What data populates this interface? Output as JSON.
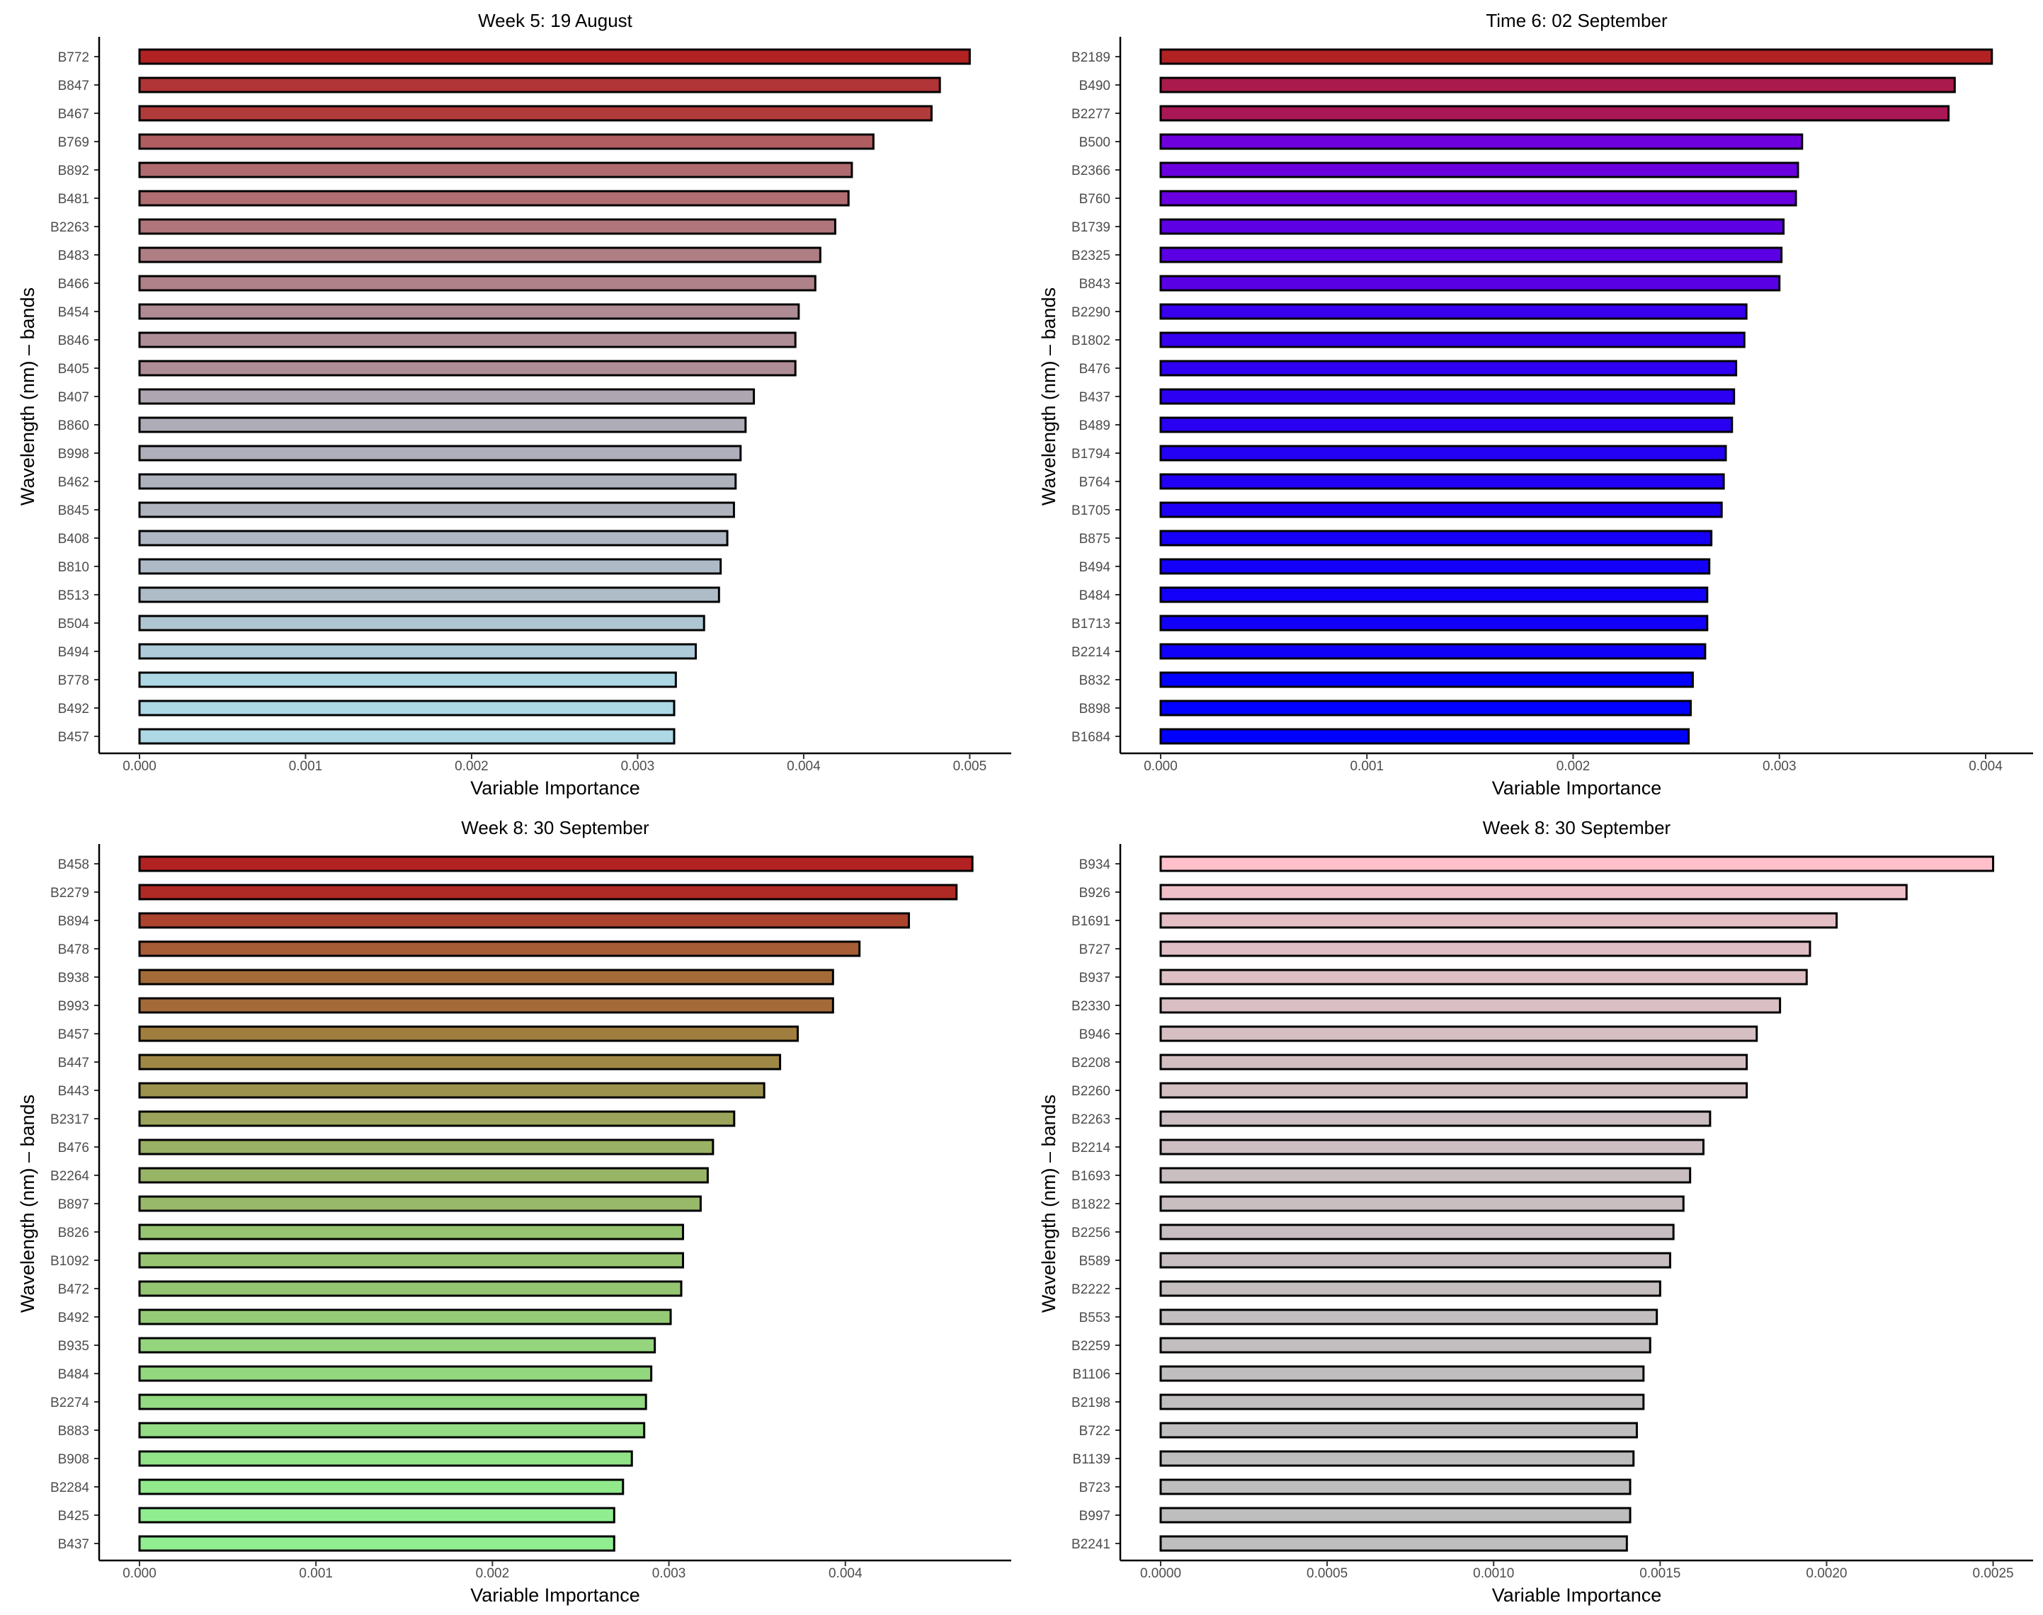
{
  "chart_data": [
    {
      "type": "bar",
      "orientation": "horizontal",
      "title": "Week 5: 19 August",
      "xlabel": "Variable Importance",
      "ylabel": "Wavelength (nm) – bands",
      "xlim": [
        0,
        0.00525
      ],
      "xticks": [
        0,
        0.001,
        0.002,
        0.003,
        0.004,
        0.005
      ],
      "xtick_labels": [
        "0.000",
        "0.001",
        "0.002",
        "0.003",
        "0.004",
        "0.005"
      ],
      "grid": false,
      "bar_outline": "#000000",
      "color_low": "#ADD8E6",
      "color_high": "#B22222",
      "categories": [
        "B772",
        "B847",
        "B467",
        "B769",
        "B892",
        "B481",
        "B2263",
        "B483",
        "B466",
        "B454",
        "B846",
        "B405",
        "B407",
        "B860",
        "B998",
        "B462",
        "B845",
        "B408",
        "B810",
        "B513",
        "B504",
        "B494",
        "B778",
        "B492",
        "B457"
      ],
      "values": [
        0.005,
        0.00482,
        0.00477,
        0.00442,
        0.00429,
        0.00427,
        0.00419,
        0.0041,
        0.00407,
        0.00397,
        0.00395,
        0.00395,
        0.0037,
        0.00365,
        0.00362,
        0.00359,
        0.00358,
        0.00354,
        0.0035,
        0.00349,
        0.0034,
        0.00335,
        0.00323,
        0.00322,
        0.00322
      ]
    },
    {
      "type": "bar",
      "orientation": "horizontal",
      "title": "Time 6: 02 September",
      "xlabel": "Variable Importance",
      "ylabel": "Wavelength (nm) – bands",
      "xlim": [
        0,
        0.00423
      ],
      "xticks": [
        0,
        0.001,
        0.002,
        0.003,
        0.004
      ],
      "xtick_labels": [
        "0.000",
        "0.001",
        "0.002",
        "0.003",
        "0.004"
      ],
      "grid": false,
      "bar_outline": "#000000",
      "color_low": "#0000FF",
      "color_mid": "#9400D3",
      "color_high": "#B22222",
      "categories": [
        "B2189",
        "B490",
        "B2277",
        "B500",
        "B2366",
        "B760",
        "B1739",
        "B2325",
        "B843",
        "B2290",
        "B1802",
        "B476",
        "B437",
        "B489",
        "B1794",
        "B764",
        "B1705",
        "B875",
        "B494",
        "B484",
        "B1713",
        "B2214",
        "B832",
        "B898",
        "B1684"
      ],
      "values": [
        0.00403,
        0.00385,
        0.00382,
        0.00311,
        0.00309,
        0.00308,
        0.00302,
        0.00301,
        0.003,
        0.00284,
        0.00283,
        0.00279,
        0.00278,
        0.00277,
        0.00274,
        0.00273,
        0.00272,
        0.00267,
        0.00266,
        0.00265,
        0.00265,
        0.00264,
        0.00258,
        0.00257,
        0.00256
      ]
    },
    {
      "type": "bar",
      "orientation": "horizontal",
      "title": "Week 8: 30 September",
      "xlabel": "Variable Importance",
      "ylabel": "Wavelength (nm) – bands",
      "xlim": [
        0,
        0.00494
      ],
      "xticks": [
        0,
        0.001,
        0.002,
        0.003,
        0.004
      ],
      "xtick_labels": [
        "0.000",
        "0.001",
        "0.002",
        "0.003",
        "0.004"
      ],
      "grid": false,
      "bar_outline": "#000000",
      "color_low": "#90EE90",
      "color_mid": "#A08040",
      "color_high": "#B22222",
      "categories": [
        "B458",
        "B2279",
        "B894",
        "B478",
        "B938",
        "B993",
        "B457",
        "B447",
        "B443",
        "B2317",
        "B476",
        "B2264",
        "B897",
        "B826",
        "B1092",
        "B472",
        "B492",
        "B935",
        "B484",
        "B2274",
        "B883",
        "B908",
        "B2284",
        "B425",
        "B437"
      ],
      "values": [
        0.00472,
        0.00463,
        0.00436,
        0.00408,
        0.00393,
        0.00393,
        0.00373,
        0.00363,
        0.00354,
        0.00337,
        0.00325,
        0.00322,
        0.00318,
        0.00308,
        0.00308,
        0.00307,
        0.00301,
        0.00292,
        0.0029,
        0.00287,
        0.00286,
        0.00279,
        0.00274,
        0.00269,
        0.00269
      ]
    },
    {
      "type": "bar",
      "orientation": "horizontal",
      "title": "Week 8: 30 September",
      "xlabel": "Variable Importance",
      "ylabel": "Wavelength (nm) – bands",
      "xlim": [
        0,
        0.00262
      ],
      "xticks": [
        0,
        0.0005,
        0.001,
        0.0015,
        0.002,
        0.0025
      ],
      "xtick_labels": [
        "0.0000",
        "0.0005",
        "0.0010",
        "0.0015",
        "0.0020",
        "0.0025"
      ],
      "grid": false,
      "bar_outline": "#000000",
      "color_low": "#BEBEBE",
      "color_high": "#FFC0CB",
      "categories": [
        "B934",
        "B926",
        "B1691",
        "B727",
        "B937",
        "B2330",
        "B946",
        "B2208",
        "B2260",
        "B2263",
        "B2214",
        "B1693",
        "B1822",
        "B2256",
        "B589",
        "B2222",
        "B553",
        "B2259",
        "B1106",
        "B2198",
        "B722",
        "B1139",
        "B723",
        "B997",
        "B2241"
      ],
      "values": [
        0.0025,
        0.00224,
        0.00203,
        0.00195,
        0.00194,
        0.00186,
        0.00179,
        0.00176,
        0.00176,
        0.00165,
        0.00163,
        0.00159,
        0.00157,
        0.00154,
        0.00153,
        0.0015,
        0.00149,
        0.00147,
        0.00145,
        0.00145,
        0.00143,
        0.00142,
        0.00141,
        0.00141,
        0.0014
      ]
    }
  ]
}
